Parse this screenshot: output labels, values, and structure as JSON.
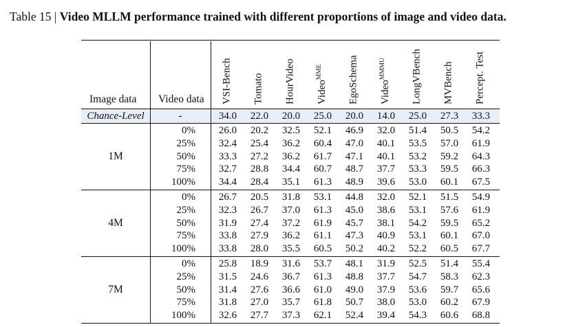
{
  "caption": {
    "label": "Table 15 |",
    "title": "Video MLLM performance trained with different proportions of image and video data."
  },
  "headers": {
    "image_data": "Image data",
    "video_data": "Video data",
    "benchmarks": [
      {
        "name": "VSI-Bench",
        "sup": ""
      },
      {
        "name": "Tomato",
        "sup": ""
      },
      {
        "name": "HourVideo",
        "sup": ""
      },
      {
        "name": "Video",
        "sup": "MME"
      },
      {
        "name": "EgoSchema",
        "sup": ""
      },
      {
        "name": "Video",
        "sup": "MMMU"
      },
      {
        "name": "LongVBench",
        "sup": ""
      },
      {
        "name": "MVBench",
        "sup": ""
      },
      {
        "name": "Percept. Test",
        "sup": ""
      }
    ]
  },
  "chance": {
    "label": "Chance-Level",
    "video": "-",
    "values": [
      "34.0",
      "22.0",
      "20.0",
      "25.0",
      "20.0",
      "14.0",
      "25.0",
      "27.3",
      "33.3"
    ]
  },
  "groups": [
    {
      "image": "1M",
      "rows": [
        {
          "video": "0%",
          "values": [
            "26.0",
            "20.2",
            "32.5",
            "52.1",
            "46.9",
            "32.0",
            "51.4",
            "50.5",
            "54.2"
          ]
        },
        {
          "video": "25%",
          "values": [
            "32.4",
            "25.4",
            "36.2",
            "60.4",
            "47.0",
            "40.1",
            "53.5",
            "57.0",
            "61.9"
          ]
        },
        {
          "video": "50%",
          "values": [
            "33.3",
            "27.2",
            "36.2",
            "61.7",
            "47.1",
            "40.1",
            "53.2",
            "59.2",
            "64.3"
          ]
        },
        {
          "video": "75%",
          "values": [
            "32.7",
            "28.8",
            "34.4",
            "60.7",
            "48.7",
            "37.7",
            "53.3",
            "59.5",
            "66.3"
          ]
        },
        {
          "video": "100%",
          "values": [
            "34.4",
            "28.4",
            "35.1",
            "61.3",
            "48.9",
            "39.6",
            "53.0",
            "60.1",
            "67.5"
          ]
        }
      ]
    },
    {
      "image": "4M",
      "rows": [
        {
          "video": "0%",
          "values": [
            "26.7",
            "20.5",
            "31.8",
            "53.1",
            "44.8",
            "32.0",
            "52.1",
            "51.5",
            "54.9"
          ]
        },
        {
          "video": "25%",
          "values": [
            "32.3",
            "26.7",
            "37.0",
            "61.3",
            "45.0",
            "38.6",
            "53.1",
            "57.6",
            "61.9"
          ]
        },
        {
          "video": "50%",
          "values": [
            "31.9",
            "27.4",
            "37.2",
            "61.9",
            "45.7",
            "38.1",
            "54.2",
            "59.5",
            "65.2"
          ]
        },
        {
          "video": "75%",
          "values": [
            "33.8",
            "27.9",
            "36.2",
            "61.1",
            "47.3",
            "40.9",
            "53.1",
            "60.1",
            "67.0"
          ]
        },
        {
          "video": "100%",
          "values": [
            "33.8",
            "28.0",
            "35.5",
            "60.5",
            "50.2",
            "40.2",
            "52.2",
            "60.5",
            "67.7"
          ]
        }
      ]
    },
    {
      "image": "7M",
      "rows": [
        {
          "video": "0%",
          "values": [
            "25.8",
            "18.9",
            "31.6",
            "53.7",
            "48.1",
            "31.9",
            "52.5",
            "51.4",
            "55.4"
          ]
        },
        {
          "video": "25%",
          "values": [
            "31.5",
            "24.6",
            "36.7",
            "61.3",
            "48.8",
            "37.7",
            "54.7",
            "58.3",
            "62.3"
          ]
        },
        {
          "video": "50%",
          "values": [
            "31.4",
            "27.6",
            "36.6",
            "61.0",
            "49.0",
            "37.9",
            "53.6",
            "59.7",
            "65.6"
          ]
        },
        {
          "video": "75%",
          "values": [
            "31.8",
            "27.0",
            "35.7",
            "61.8",
            "50.7",
            "38.0",
            "53.0",
            "60.2",
            "67.9"
          ]
        },
        {
          "video": "100%",
          "values": [
            "32.6",
            "27.7",
            "37.3",
            "62.1",
            "52.4",
            "39.4",
            "54.3",
            "60.6",
            "68.8"
          ]
        }
      ]
    }
  ]
}
